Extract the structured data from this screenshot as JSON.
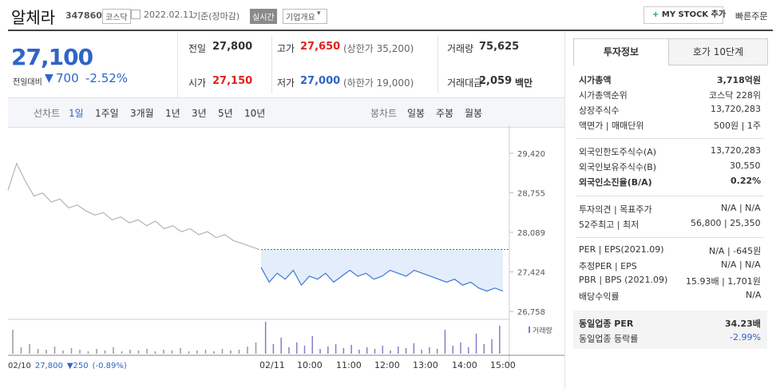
{
  "header": {
    "name": "알체라",
    "code": "347860",
    "market": "코스닥",
    "date": "2022.02.11",
    "basis": "기준(장마감)",
    "realtime": "실시간",
    "overview": "기업개요",
    "my_stock": "MY STOCK 추가",
    "quick_order": "빠른주문"
  },
  "price": {
    "current": "27,100",
    "change_label": "전일대비",
    "change_arrow": "▼",
    "change": "700",
    "change_rate": "-2.52%"
  },
  "summary": {
    "rows": [
      [
        {
          "label": "전일",
          "value": "27,800"
        },
        {
          "label": "고가",
          "value": "27,650",
          "note": "(상한가 35,200)"
        },
        {
          "label": "거래량",
          "value": "75,625"
        }
      ],
      [
        {
          "label": "시가",
          "value": "27,150"
        },
        {
          "label": "저가",
          "value": "27,000",
          "note": "(하한가 19,000)"
        },
        {
          "label": "거래대금",
          "value": "2,059",
          "unit": "백만"
        }
      ]
    ]
  },
  "chart_tabs": {
    "line_label": "선차트",
    "line": [
      "1일",
      "1주일",
      "3개월",
      "1년",
      "3년",
      "5년",
      "10년"
    ],
    "candle_label": "봉차트",
    "candle": [
      "일봉",
      "주봉",
      "월봉"
    ]
  },
  "chart_data": {
    "type": "line",
    "ylim": [
      26624,
      29716
    ],
    "yticks": [
      {
        "value": 29420,
        "label": "29,420"
      },
      {
        "value": 28755,
        "label": "28,755"
      },
      {
        "value": 28089,
        "label": "28,089"
      },
      {
        "value": 27424,
        "label": "27,424"
      },
      {
        "value": 26758,
        "label": "26,758"
      }
    ],
    "base_value": 27800,
    "series": [
      {
        "color": "#b3b3b3",
        "values": [
          28800,
          29250,
          28950,
          28700,
          28750,
          28600,
          28650,
          28500,
          28550,
          28450,
          28380,
          28420,
          28300,
          28350,
          28250,
          28300,
          28200,
          28280,
          28150,
          28200,
          28100,
          28150,
          28050,
          28100,
          28000,
          28050,
          27950,
          27900,
          27850,
          27800
        ],
        "volumes": [
          30,
          8,
          12,
          6,
          5,
          9,
          4,
          7,
          5,
          3,
          6,
          4,
          8,
          3,
          5,
          4,
          6,
          3,
          5,
          4,
          7,
          3,
          4,
          5,
          3,
          6,
          4,
          5,
          9,
          14
        ]
      },
      {
        "color": "#3b78d6",
        "values": [
          27500,
          27250,
          27400,
          27300,
          27450,
          27200,
          27350,
          27300,
          27400,
          27250,
          27350,
          27450,
          27350,
          27400,
          27300,
          27350,
          27450,
          27400,
          27350,
          27450,
          27400,
          27350,
          27300,
          27250,
          27300,
          27200,
          27250,
          27150,
          27100,
          27150,
          27100
        ],
        "volumes": [
          40,
          12,
          20,
          8,
          14,
          10,
          22,
          6,
          9,
          12,
          7,
          11,
          5,
          8,
          6,
          10,
          4,
          9,
          7,
          13,
          5,
          8,
          6,
          30,
          10,
          14,
          8,
          25,
          12,
          18,
          35
        ]
      }
    ],
    "xlabels": [
      "02/10",
      "02/11",
      "10:00",
      "11:00",
      "12:00",
      "13:00",
      "14:00",
      "15:00"
    ],
    "volume_label": "거래량",
    "footer": {
      "date": "02/10",
      "close": "27,800",
      "change": "▼250",
      "rate": "(-0.89%)"
    }
  },
  "invest": {
    "tabs": [
      "투자정보",
      "호가 10단계"
    ],
    "groups": [
      [
        {
          "label": "시가총액",
          "value": "3,718억원",
          "bold": true
        },
        {
          "label": "시가총액순위",
          "value": "코스닥 228위"
        },
        {
          "label": "상장주식수",
          "value": "13,720,283"
        },
        {
          "label": "액면가 | 매매단위",
          "value": "500원 | 1주"
        }
      ],
      [
        {
          "label": "외국인한도주식수(A)",
          "value": "13,720,283"
        },
        {
          "label": "외국인보유주식수(B)",
          "value": "30,550"
        },
        {
          "label": "외국인소진율(B/A)",
          "value": "0.22%",
          "bold": true
        }
      ],
      [
        {
          "label": "투자의견 | 목표주가",
          "value": "N/A | N/A"
        },
        {
          "label": "52주최고 | 최저",
          "value": "56,800 | 25,350"
        }
      ],
      [
        {
          "label": "PER | EPS(2021.09)",
          "value": "N/A | -645원"
        },
        {
          "label": "추정PER | EPS",
          "value": "N/A | N/A"
        },
        {
          "label": "PBR | BPS (2021.09)",
          "value": "15.93배 | 1,701원"
        },
        {
          "label": "배당수익률",
          "value": "N/A"
        }
      ],
      [
        {
          "label": "동일업종 PER",
          "value": "34.23배",
          "bold": true
        },
        {
          "label": "동일업종 등락률",
          "value": "-2.99%",
          "value_color": "#2f64c8"
        }
      ]
    ]
  }
}
